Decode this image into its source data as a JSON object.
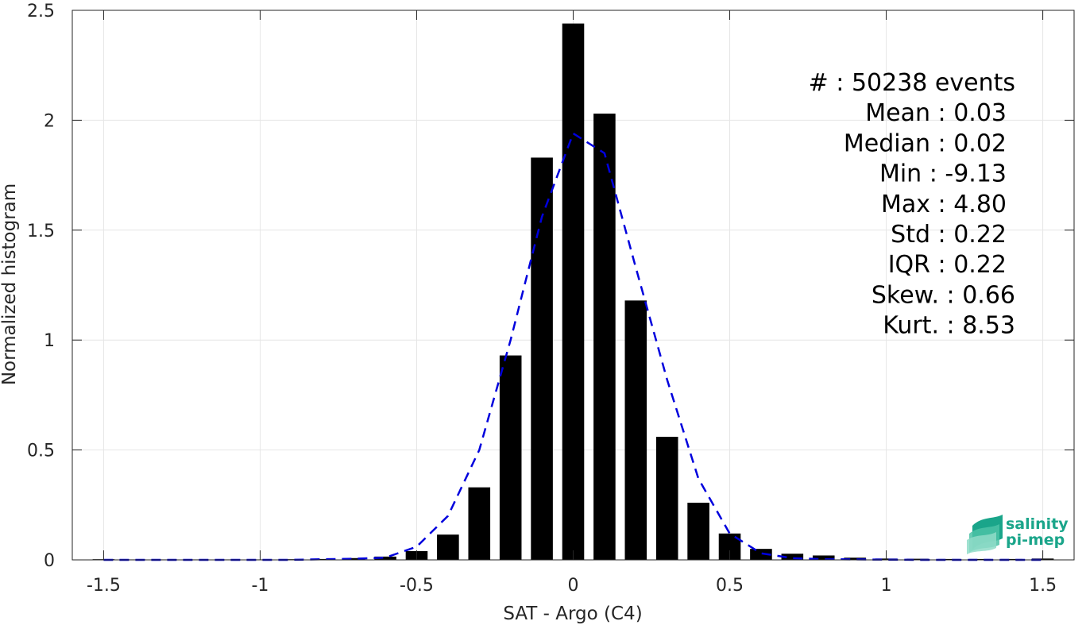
{
  "chart_data": {
    "type": "bar",
    "xlabel": "SAT - Argo (C4)",
    "ylabel": "Normalized histogram",
    "xlim": [
      -1.6,
      1.6
    ],
    "ylim": [
      0,
      2.5
    ],
    "xticks": [
      -1.5,
      -1,
      -0.5,
      0,
      0.5,
      1,
      1.5
    ],
    "xtick_labels": [
      "-1.5",
      "-1",
      "-0.5",
      "0",
      "0.5",
      "1",
      "1.5"
    ],
    "yticks": [
      0,
      0.5,
      1,
      1.5,
      2,
      2.5
    ],
    "ytick_labels": [
      "0",
      "0.5",
      "1",
      "1.5",
      "2",
      "2.5"
    ],
    "grid": true,
    "bar_width": 0.07,
    "bars": {
      "x": [
        -1.5,
        -1.4,
        -1.3,
        -1.2,
        -1.1,
        -1.0,
        -0.9,
        -0.8,
        -0.7,
        -0.6,
        -0.5,
        -0.4,
        -0.3,
        -0.2,
        -0.1,
        0.0,
        0.1,
        0.2,
        0.3,
        0.4,
        0.5,
        0.6,
        0.7,
        0.8,
        0.9,
        1.0,
        1.1,
        1.2,
        1.3,
        1.4,
        1.5
      ],
      "values": [
        0.003,
        0.002,
        0.002,
        0.002,
        0.002,
        0.002,
        0.003,
        0.004,
        0.008,
        0.015,
        0.04,
        0.115,
        0.33,
        0.93,
        1.83,
        2.44,
        2.03,
        1.18,
        0.56,
        0.26,
        0.12,
        0.05,
        0.028,
        0.02,
        0.01,
        0.006,
        0.005,
        0.004,
        0.004,
        0.004,
        0.006
      ]
    },
    "fit_curve": {
      "style": "dashed",
      "color": "#0000dd",
      "x": [
        -1.5,
        -1.4,
        -1.3,
        -1.2,
        -1.1,
        -1.0,
        -0.9,
        -0.8,
        -0.7,
        -0.6,
        -0.5,
        -0.4,
        -0.3,
        -0.2,
        -0.1,
        0.0,
        0.1,
        0.2,
        0.3,
        0.4,
        0.5,
        0.6,
        0.7,
        0.8,
        0.9,
        1.0,
        1.1,
        1.2,
        1.3,
        1.4,
        1.5
      ],
      "values": [
        0,
        0,
        0,
        0,
        0,
        0,
        0,
        0.003,
        0.005,
        0.01,
        0.06,
        0.2,
        0.5,
        1.0,
        1.56,
        1.94,
        1.85,
        1.33,
        0.82,
        0.37,
        0.12,
        0.03,
        0.008,
        0.003,
        0.002,
        0.001,
        0,
        0,
        0,
        0,
        0
      ]
    },
    "colors": {
      "bars": "#000000",
      "grid": "#e6e6e6",
      "axis": "#262626"
    },
    "annotation_lines": [
      "#  : 50238 events",
      "Mean : 0.03",
      "Median : 0.02",
      "Min : -9.13",
      "Max : 4.80",
      "Std : 0.22",
      "IQR : 0.22",
      "Skew. : 0.66",
      "Kurt. : 8.53"
    ]
  },
  "logo": {
    "line1": "salinity",
    "line2": "pi-mep",
    "colors": [
      "#1aa58a",
      "#7fd8c3"
    ]
  }
}
